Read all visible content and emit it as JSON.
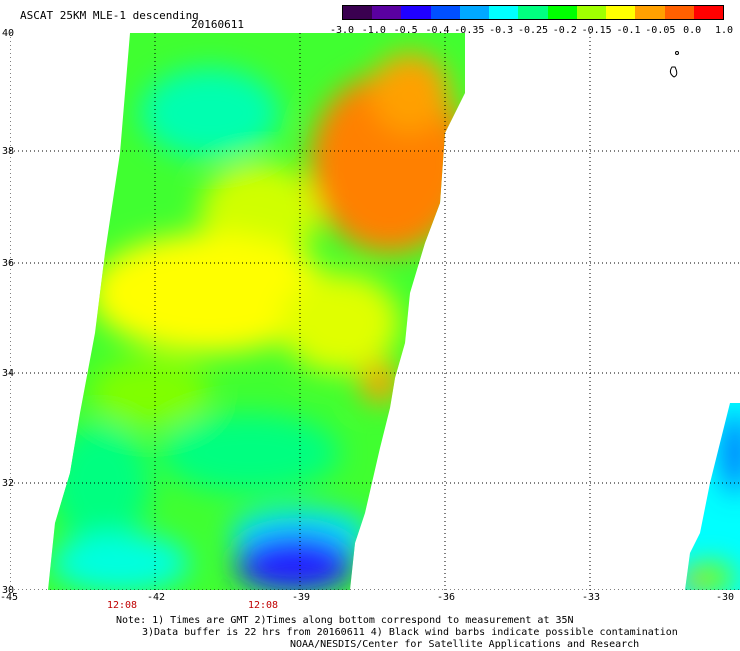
{
  "header": {
    "title": "ASCAT 25KM MLE-1 descending",
    "date": "20160611"
  },
  "colorbar": {
    "colors": [
      "#3a0050",
      "#5a00a0",
      "#2000ff",
      "#0050ff",
      "#00a8ff",
      "#00ffff",
      "#00ff80",
      "#00ff00",
      "#a0ff00",
      "#ffff00",
      "#ffa000",
      "#ff6000",
      "#ff0000"
    ],
    "labels": [
      "-3.0",
      "-1.0",
      "-0.5",
      "-0.4",
      "-0.35",
      "-0.3",
      "-0.25",
      "-0.2",
      "-0.15",
      "-0.1",
      "-0.05",
      "0.0",
      "1.0"
    ]
  },
  "axes": {
    "lat_labels": [
      "40",
      "38",
      "36",
      "34",
      "32",
      "30"
    ],
    "lon_labels": [
      "-45",
      "-42",
      "-39",
      "-36",
      "-33",
      "-30"
    ]
  },
  "time_labels": [
    "12:08",
    "12:08"
  ],
  "notes": {
    "line1": "Note: 1) Times are GMT 2)Times along bottom correspond to measurement at 35N",
    "line2": "3)Data buffer is 22 hrs from 20160611 4) Black wind barbs indicate possible contamination",
    "line3": "NOAA/NESDIS/Center for Satellite Applications and Research"
  }
}
